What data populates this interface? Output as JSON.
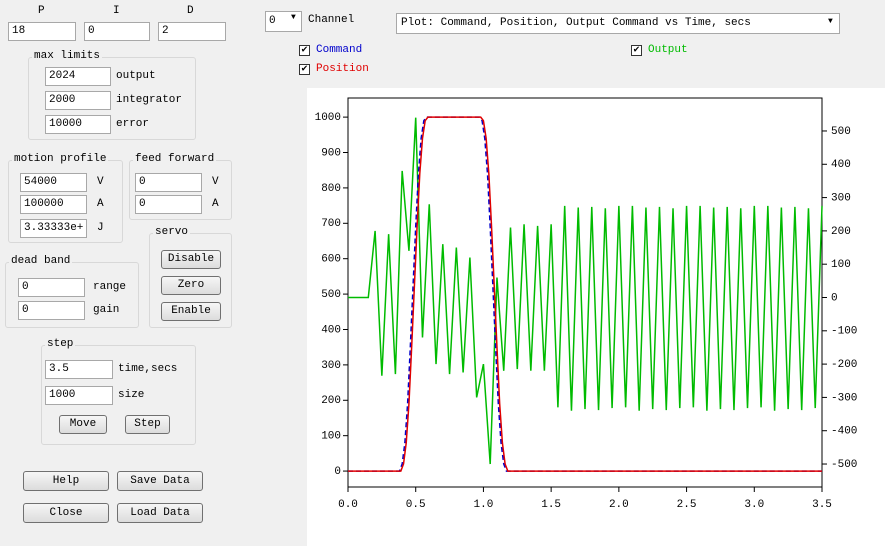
{
  "pid": {
    "labels": [
      "P",
      "I",
      "D"
    ],
    "values": [
      "18",
      "0",
      "2"
    ]
  },
  "max_limits": {
    "title": "max limits",
    "fields": [
      {
        "value": "2024",
        "label": "output"
      },
      {
        "value": "2000",
        "label": "integrator"
      },
      {
        "value": "10000",
        "label": "error"
      }
    ]
  },
  "motion_profile": {
    "title": "motion profile",
    "fields": [
      {
        "value": "54000",
        "label": "V"
      },
      {
        "value": "100000",
        "label": "A"
      },
      {
        "value": "3.33333e+",
        "label": "J"
      }
    ]
  },
  "feed_forward": {
    "title": "feed forward",
    "fields": [
      {
        "value": "0",
        "label": "V"
      },
      {
        "value": "0",
        "label": "A"
      }
    ]
  },
  "servo": {
    "title": "servo",
    "buttons": [
      "Disable",
      "Zero",
      "Enable"
    ]
  },
  "dead_band": {
    "title": "dead band",
    "fields": [
      {
        "value": "0",
        "label": "range"
      },
      {
        "value": "0",
        "label": "gain"
      }
    ]
  },
  "step": {
    "title": "step",
    "fields": [
      {
        "value": "3.5",
        "label": "time,secs"
      },
      {
        "value": "1000",
        "label": "size"
      }
    ],
    "buttons": [
      "Move",
      "Step"
    ]
  },
  "buttons": [
    "Help",
    "Save Data",
    "Close",
    "Load Data"
  ],
  "channel": {
    "value": "0",
    "label": "Channel"
  },
  "plot_select": "Plot: Command, Position, Output Command vs Time, secs",
  "chart_data": {
    "type": "line",
    "xlim": [
      0,
      3.5
    ],
    "xticks": [
      {
        "value": 0,
        "label": "0.0"
      },
      0.5,
      {
        "value": 1,
        "label": "1.0"
      },
      1.5,
      {
        "value": 2,
        "label": "2.0"
      },
      2.5,
      {
        "value": 3,
        "label": "3.0"
      },
      3.5
    ],
    "ylim": [
      -45,
      1054
    ],
    "yticks": [
      0,
      100,
      200,
      300,
      400,
      500,
      600,
      700,
      800,
      900,
      1000
    ],
    "y2lim": [
      -569,
      599
    ],
    "y2ticks": [
      -500,
      -400,
      -300,
      -200,
      -100,
      0,
      100,
      200,
      300,
      400,
      500
    ],
    "series": [
      {
        "name": "Output",
        "color": "#00bb00",
        "axis": "y2",
        "x": [
          0,
          0.15,
          0.2,
          0.25,
          0.3,
          0.35,
          0.4,
          0.45,
          0.5,
          0.55,
          0.6,
          0.65,
          0.7,
          0.75,
          0.8,
          0.85,
          0.9,
          0.95,
          1,
          1.05,
          1.1,
          1.15,
          1.2,
          1.25,
          1.3,
          1.35,
          1.4,
          1.45,
          1.5,
          1.55,
          1.6,
          1.65,
          1.7,
          1.75,
          1.8,
          1.85,
          1.9,
          1.95,
          2,
          2.05,
          2.1,
          2.15,
          2.2,
          2.25,
          2.3,
          2.35,
          2.4,
          2.45,
          2.5,
          2.55,
          2.6,
          2.65,
          2.7,
          2.75,
          2.8,
          2.85,
          2.9,
          2.95,
          3,
          3.05,
          3.1,
          3.15,
          3.2,
          3.25,
          3.3,
          3.35,
          3.4,
          3.45,
          3.5
        ],
        "values": [
          0,
          0,
          200,
          -235,
          190,
          -230,
          380,
          140,
          540,
          -120,
          280,
          -200,
          160,
          -230,
          150,
          -225,
          120,
          -300,
          -200,
          -500,
          60,
          -220,
          210,
          -215,
          220,
          -220,
          215,
          -220,
          220,
          -330,
          275,
          -340,
          270,
          -335,
          272,
          -338,
          268,
          -332,
          275,
          -330,
          275,
          -340,
          270,
          -335,
          272,
          -338,
          268,
          -332,
          275,
          -330,
          275,
          -340,
          270,
          -335,
          272,
          -338,
          268,
          -332,
          275,
          -330,
          275,
          -340,
          270,
          -335,
          272,
          -338,
          268,
          -332,
          275
        ]
      },
      {
        "name": "Command",
        "color": "#0000cc",
        "x": [
          0,
          0.38,
          0.4,
          0.42,
          0.44,
          0.46,
          0.48,
          0.5,
          0.52,
          0.54,
          0.56,
          0.58,
          0.97,
          0.99,
          1.01,
          1.03,
          1.05,
          1.07,
          1.09,
          1.11,
          1.13,
          1.15,
          1.17,
          3.5
        ],
        "values": [
          0,
          0,
          20,
          80,
          190,
          350,
          520,
          690,
          840,
          940,
          990,
          1000,
          1000,
          990,
          940,
          840,
          690,
          520,
          350,
          190,
          80,
          20,
          0,
          0
        ]
      },
      {
        "name": "Position",
        "color": "#e00000",
        "x": [
          0,
          0.39,
          0.41,
          0.43,
          0.45,
          0.47,
          0.49,
          0.51,
          0.53,
          0.55,
          0.57,
          0.59,
          0.98,
          1,
          1.02,
          1.04,
          1.06,
          1.08,
          1.1,
          1.12,
          1.14,
          1.16,
          1.18,
          3.5
        ],
        "values": [
          0,
          0,
          20,
          80,
          190,
          350,
          520,
          690,
          840,
          940,
          990,
          1000,
          1000,
          990,
          940,
          840,
          690,
          520,
          350,
          190,
          80,
          20,
          0,
          0
        ]
      }
    ]
  }
}
